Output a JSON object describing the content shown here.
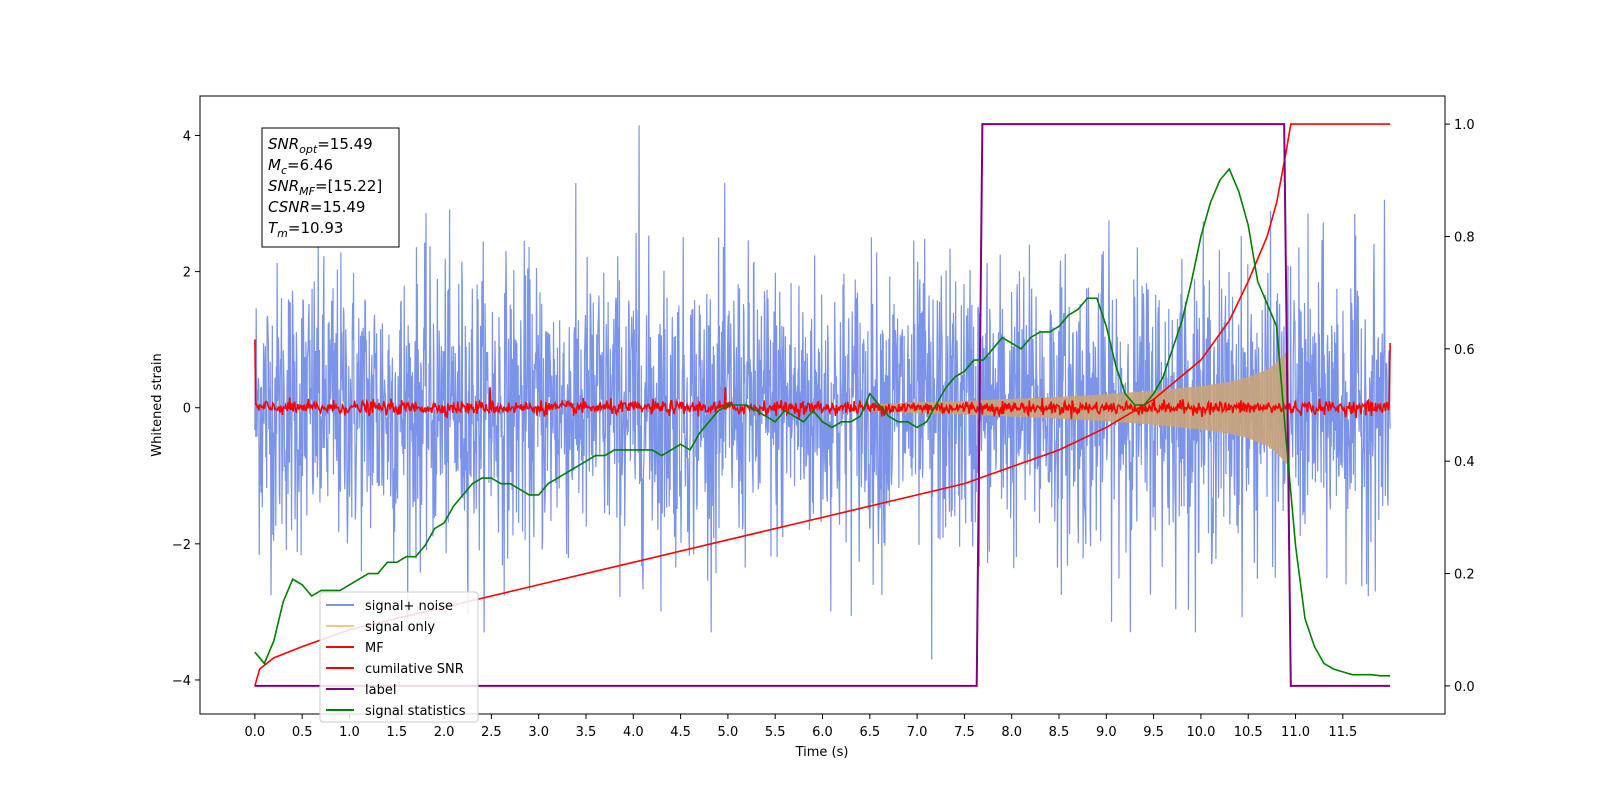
{
  "chart_data": {
    "type": "line",
    "xlabel": "Time (s)",
    "ylabel": "Whitened strain",
    "xlim": [
      -0.58,
      12.58
    ],
    "ylim": [
      -4.5,
      4.58
    ],
    "y2lim": [
      -0.05,
      1.05
    ],
    "x_ticks": [
      "0.0",
      "0.5",
      "1.0",
      "1.5",
      "2.0",
      "2.5",
      "3.0",
      "3.5",
      "4.0",
      "4.5",
      "5.0",
      "5.5",
      "6.0",
      "6.5",
      "7.0",
      "7.5",
      "8.0",
      "8.5",
      "9.0",
      "9.5",
      "10.0",
      "10.5",
      "11.0",
      "11.5"
    ],
    "y_ticks": [
      "−4",
      "−2",
      "0",
      "2",
      "4"
    ],
    "y2_ticks": [
      "0.0",
      "0.2",
      "0.4",
      "0.6",
      "0.8",
      "1.0"
    ],
    "annotation": {
      "lines": [
        {
          "sym": "SNR",
          "sub": "opt",
          "value": "=15.49"
        },
        {
          "sym": "M",
          "sub": "c",
          "value": "=6.46"
        },
        {
          "sym": "SNR",
          "sub": "MF",
          "value": "=[15.22]"
        },
        {
          "sym": "CSNR",
          "sub": "",
          "value": "=15.49"
        },
        {
          "sym": "T",
          "sub": "m",
          "value": "=10.93"
        }
      ]
    },
    "legend": {
      "position": "lower-left",
      "items": [
        {
          "label": "signal+ noise",
          "color": "#7b93e8"
        },
        {
          "label": "signal only",
          "color": "#f5c77a"
        },
        {
          "label": "MF",
          "color": "#ff0000"
        },
        {
          "label": "cumilative SNR",
          "color": "#ff0000"
        },
        {
          "label": "label",
          "color": "#800080"
        },
        {
          "label": "signal statistics",
          "color": "#008000"
        }
      ]
    },
    "series": [
      {
        "name": "signal+ noise",
        "axis": "left",
        "color": "#7b93e8",
        "kind": "gaussian noise",
        "x_range": [
          0.0,
          12.0
        ],
        "std": 1.0,
        "peak_max": 4.15,
        "peak_min": -3.7
      },
      {
        "name": "signal only",
        "axis": "left",
        "color": "#c9a47a",
        "kind": "chirp envelope",
        "x_range": [
          6.5,
          10.93
        ],
        "envelope": {
          "x": [
            6.5,
            7.0,
            7.5,
            8.0,
            8.5,
            9.0,
            9.5,
            10.0,
            10.3,
            10.5,
            10.7,
            10.8,
            10.9,
            10.93
          ],
          "y": [
            0.05,
            0.08,
            0.1,
            0.13,
            0.16,
            0.2,
            0.25,
            0.32,
            0.38,
            0.45,
            0.56,
            0.66,
            0.82,
            0.85
          ]
        }
      },
      {
        "name": "MF",
        "axis": "left",
        "color": "#ff0000",
        "kind": "noise around zero",
        "x_range": [
          0.0,
          12.0
        ],
        "std": 0.05,
        "edge_values": {
          "start": 1.0,
          "end": 0.95
        }
      },
      {
        "name": "cumilative SNR",
        "axis": "right",
        "color": "#ff0000",
        "x": [
          0.0,
          0.05,
          0.2,
          0.5,
          1.0,
          2.0,
          3.0,
          4.0,
          5.0,
          6.0,
          7.0,
          7.5,
          8.0,
          8.5,
          9.0,
          9.5,
          10.0,
          10.3,
          10.5,
          10.7,
          10.8,
          10.9,
          10.95,
          11.0,
          12.0
        ],
        "y": [
          0.0,
          0.03,
          0.05,
          0.07,
          0.1,
          0.14,
          0.18,
          0.22,
          0.26,
          0.3,
          0.34,
          0.36,
          0.39,
          0.42,
          0.46,
          0.51,
          0.58,
          0.65,
          0.72,
          0.8,
          0.86,
          0.95,
          1.0,
          1.0,
          1.0
        ]
      },
      {
        "name": "label",
        "axis": "right",
        "color": "#800080",
        "x": [
          0.0,
          7.63,
          7.69,
          10.88,
          10.95,
          12.0
        ],
        "y": [
          0.0,
          0.0,
          1.0,
          1.0,
          0.0,
          0.0
        ]
      },
      {
        "name": "signal statistics",
        "axis": "right",
        "color": "#008000",
        "x": [
          0.0,
          0.1,
          0.2,
          0.3,
          0.4,
          0.5,
          0.6,
          0.7,
          0.8,
          0.9,
          1.0,
          1.1,
          1.2,
          1.3,
          1.4,
          1.5,
          1.6,
          1.7,
          1.8,
          1.9,
          2.0,
          2.1,
          2.2,
          2.3,
          2.4,
          2.5,
          2.6,
          2.7,
          2.8,
          2.9,
          3.0,
          3.1,
          3.2,
          3.3,
          3.4,
          3.5,
          3.6,
          3.7,
          3.8,
          3.9,
          4.0,
          4.1,
          4.2,
          4.3,
          4.4,
          4.5,
          4.6,
          4.7,
          4.8,
          4.9,
          5.0,
          5.1,
          5.2,
          5.3,
          5.4,
          5.5,
          5.6,
          5.7,
          5.8,
          5.9,
          6.0,
          6.1,
          6.2,
          6.3,
          6.4,
          6.5,
          6.6,
          6.7,
          6.8,
          6.9,
          7.0,
          7.1,
          7.2,
          7.3,
          7.4,
          7.5,
          7.6,
          7.7,
          7.8,
          7.9,
          8.0,
          8.1,
          8.2,
          8.3,
          8.4,
          8.5,
          8.6,
          8.7,
          8.8,
          8.9,
          9.0,
          9.1,
          9.2,
          9.3,
          9.4,
          9.5,
          9.6,
          9.7,
          9.8,
          9.9,
          10.0,
          10.1,
          10.2,
          10.3,
          10.4,
          10.5,
          10.6,
          10.7,
          10.8,
          10.9,
          11.0,
          11.1,
          11.2,
          11.3,
          11.4,
          11.5,
          11.6,
          11.7,
          11.8,
          11.9,
          12.0
        ],
        "y": [
          0.06,
          0.04,
          0.08,
          0.15,
          0.19,
          0.18,
          0.16,
          0.17,
          0.17,
          0.17,
          0.18,
          0.19,
          0.2,
          0.2,
          0.22,
          0.22,
          0.23,
          0.23,
          0.25,
          0.28,
          0.29,
          0.32,
          0.34,
          0.36,
          0.37,
          0.37,
          0.36,
          0.36,
          0.35,
          0.34,
          0.34,
          0.36,
          0.37,
          0.38,
          0.39,
          0.4,
          0.41,
          0.41,
          0.42,
          0.42,
          0.42,
          0.42,
          0.42,
          0.41,
          0.42,
          0.43,
          0.42,
          0.45,
          0.47,
          0.49,
          0.5,
          0.5,
          0.5,
          0.49,
          0.48,
          0.47,
          0.49,
          0.48,
          0.47,
          0.49,
          0.47,
          0.46,
          0.47,
          0.47,
          0.48,
          0.52,
          0.5,
          0.48,
          0.47,
          0.47,
          0.46,
          0.47,
          0.5,
          0.53,
          0.55,
          0.56,
          0.58,
          0.58,
          0.6,
          0.62,
          0.61,
          0.6,
          0.62,
          0.63,
          0.63,
          0.64,
          0.66,
          0.67,
          0.69,
          0.69,
          0.64,
          0.57,
          0.52,
          0.5,
          0.5,
          0.52,
          0.55,
          0.6,
          0.65,
          0.72,
          0.8,
          0.86,
          0.9,
          0.92,
          0.88,
          0.82,
          0.72,
          0.68,
          0.64,
          0.44,
          0.25,
          0.12,
          0.07,
          0.04,
          0.03,
          0.025,
          0.02,
          0.02,
          0.02,
          0.018,
          0.018
        ]
      }
    ]
  }
}
